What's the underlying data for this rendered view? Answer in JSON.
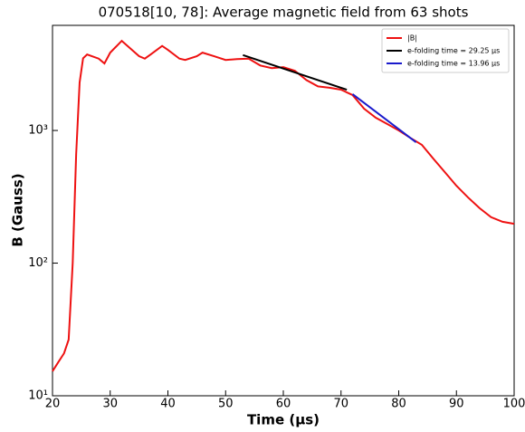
{
  "chart_data": {
    "type": "line",
    "title": "070518[10, 78]: Average magnetic field from 63 shots",
    "x_label": "Time (μs)",
    "y_label": "B (Gauss)",
    "xlim": [
      20,
      100
    ],
    "xticks": [
      20,
      30,
      40,
      50,
      60,
      70,
      80,
      90,
      100
    ],
    "ylim": [
      10,
      6200
    ],
    "y_log": true,
    "yticks": [
      {
        "value": 10,
        "label": "10¹"
      },
      {
        "value": 100,
        "label": "10²"
      },
      {
        "value": 1000,
        "label": "10³"
      }
    ],
    "legend": "upper right",
    "series": [
      {
        "name": "|B|",
        "color": "#ee1111",
        "x": [
          20,
          21,
          22,
          22.8,
          23.5,
          24.1,
          24.7,
          25.3,
          26,
          28,
          29,
          30,
          32,
          33,
          35,
          36,
          37,
          39,
          40,
          42,
          43,
          45,
          46,
          48,
          50,
          52,
          54,
          56,
          58,
          60,
          62,
          64,
          66,
          68,
          70,
          72,
          74,
          76,
          78,
          80,
          82,
          84,
          86,
          88,
          90,
          92,
          94,
          96,
          98,
          100
        ],
        "values": [
          15.3,
          17.9,
          20.9,
          26.5,
          100,
          660,
          2300,
          3500,
          3740,
          3480,
          3200,
          3860,
          4740,
          4340,
          3630,
          3480,
          3740,
          4340,
          4050,
          3480,
          3400,
          3630,
          3860,
          3630,
          3400,
          3450,
          3480,
          3090,
          2950,
          3000,
          2820,
          2400,
          2150,
          2100,
          2030,
          1850,
          1460,
          1250,
          1120,
          1000,
          880,
          780,
          612,
          485,
          383,
          313,
          260,
          222,
          205,
          198
        ]
      },
      {
        "name": "e-folding time = 29.25 μs",
        "color": "#000000",
        "x": [
          53,
          71
        ],
        "values": [
          3700,
          2030
        ]
      },
      {
        "name": "e-folding time = 13.96 μs",
        "color": "#1a1acc",
        "x": [
          72,
          83
        ],
        "values": [
          1880,
          815
        ]
      }
    ]
  }
}
